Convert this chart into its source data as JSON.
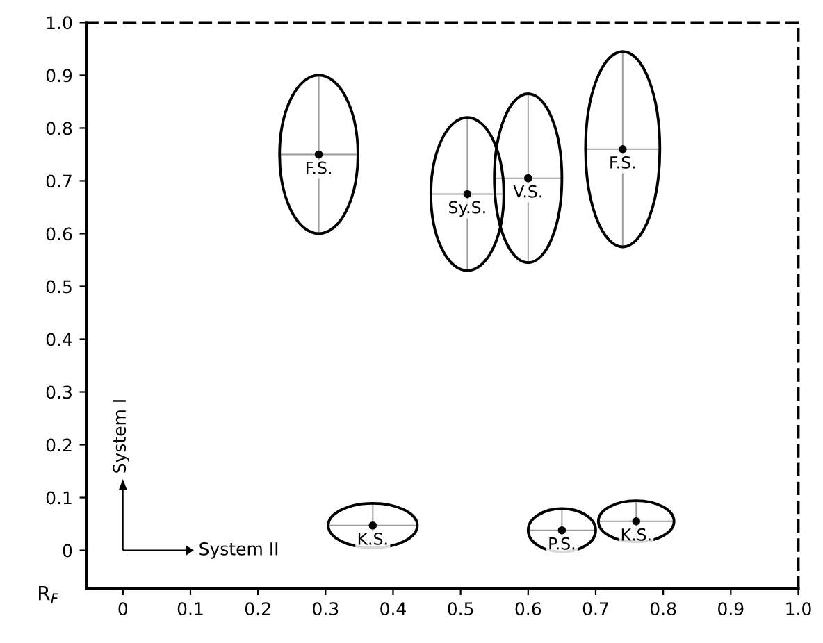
{
  "chart_data": {
    "type": "scatter",
    "x": [
      0.29,
      0.51,
      0.6,
      0.74,
      0.37,
      0.65,
      0.76
    ],
    "values": [
      0.75,
      0.675,
      0.705,
      0.76,
      0.047,
      0.038,
      0.055
    ],
    "xerrors": [
      0.058,
      0.054,
      0.05,
      0.055,
      0.066,
      0.05,
      0.056
    ],
    "errors": [
      0.15,
      0.145,
      0.16,
      0.185,
      0.042,
      0.041,
      0.039
    ],
    "color": "#000000",
    "annotations": [
      {
        "text": "F.S.",
        "x": 0.29,
        "y": 0.75
      },
      {
        "text": "Sy.S.",
        "x": 0.51,
        "y": 0.675
      },
      {
        "text": "V.S.",
        "x": 0.6,
        "y": 0.705
      },
      {
        "text": "F.S.",
        "x": 0.74,
        "y": 0.76
      },
      {
        "text": "K.S.",
        "x": 0.37,
        "y": 0.047
      },
      {
        "text": "P.S.",
        "x": 0.65,
        "y": 0.038
      },
      {
        "text": "K.S.",
        "x": 0.76,
        "y": 0.055
      },
      "System I",
      "System II",
      "R$_{F}$"
    ],
    "xlim": [
      -0.054,
      1.0
    ],
    "ylim": [
      -0.072,
      1.0
    ],
    "xticks": [
      0,
      0.1,
      0.2,
      0.3,
      0.4,
      0.5,
      0.6,
      0.7,
      0.8,
      0.9,
      {
        "value": 1,
        "label": "1.0"
      }
    ],
    "yticks": [
      0,
      0.1,
      0.2,
      0.3,
      0.4,
      0.5,
      0.6,
      0.7,
      0.8,
      0.9,
      {
        "value": 1,
        "label": "1.0"
      }
    ],
    "marker": "circle",
    "grid": false,
    "legend": false
  }
}
